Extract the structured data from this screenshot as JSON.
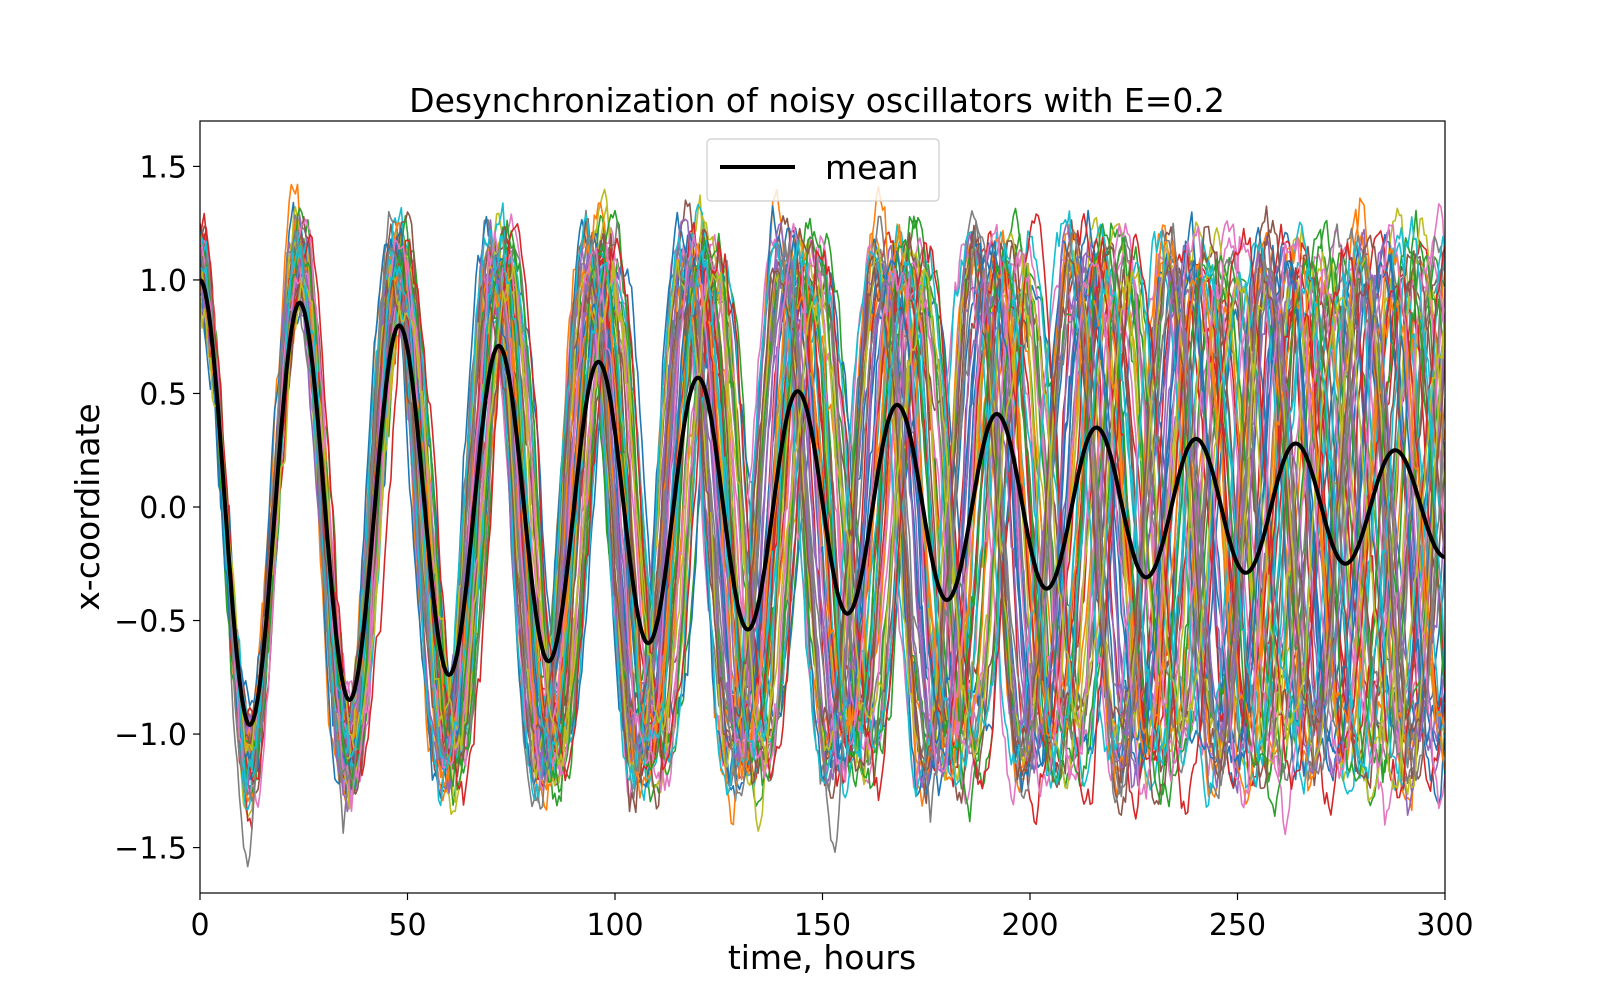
{
  "chart_data": {
    "type": "line",
    "title": "Desynchronization of noisy oscillators with E=0.2",
    "xlabel": "time, hours",
    "ylabel": "x-coordinate",
    "xlim": [
      0,
      300
    ],
    "ylim": [
      -1.7,
      1.7
    ],
    "x_ticks": [
      0,
      50,
      100,
      150,
      200,
      250,
      300
    ],
    "x_tick_labels": [
      "0",
      "50",
      "100",
      "150",
      "200",
      "250",
      "300"
    ],
    "y_ticks": [
      1.5,
      1.0,
      0.5,
      0.0,
      -0.5,
      -1.0,
      -1.5
    ],
    "y_tick_labels": [
      "1.5",
      "1.0",
      "0.5",
      "0.0",
      "−0.5",
      "−1.0",
      "−1.5"
    ],
    "grid": false,
    "legend": {
      "position": "top-center",
      "entries": [
        "mean"
      ]
    },
    "series": [
      {
        "name": "mean",
        "color": "#000000",
        "x": [
          0,
          12,
          24,
          36,
          48,
          60,
          72,
          84,
          96,
          108,
          120,
          132,
          144,
          156,
          168,
          180,
          192,
          204,
          216,
          228,
          240,
          252,
          264,
          276,
          288,
          300
        ],
        "y": [
          1.0,
          -0.96,
          0.9,
          -0.85,
          0.8,
          -0.74,
          0.71,
          -0.68,
          0.64,
          -0.6,
          0.57,
          -0.54,
          0.51,
          -0.47,
          0.45,
          -0.41,
          0.41,
          -0.36,
          0.35,
          -0.31,
          0.3,
          -0.29,
          0.28,
          -0.25,
          0.25,
          -0.22
        ]
      }
    ],
    "background_traces": {
      "description_count": 60,
      "period_hours": 24,
      "amplitude_range": [
        -1.6,
        1.6
      ],
      "colors": [
        "#1f77b4",
        "#ff7f0e",
        "#2ca02c",
        "#d62728",
        "#9467bd",
        "#8c564b",
        "#e377c2",
        "#7f7f7f",
        "#bcbd22",
        "#17becf"
      ]
    }
  }
}
